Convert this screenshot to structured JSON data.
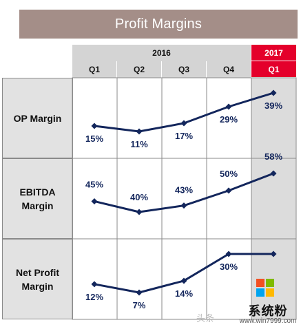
{
  "chart_data": {
    "type": "line",
    "title": "Profit Margins",
    "year_labels": [
      "2016",
      "2017"
    ],
    "categories": [
      "Q1",
      "Q2",
      "Q3",
      "Q4",
      "Q1"
    ],
    "series": [
      {
        "name": "OP Margin",
        "values": [
          15,
          11,
          17,
          29,
          39
        ],
        "labels": [
          "15%",
          "11%",
          "17%",
          "29%",
          "39%"
        ]
      },
      {
        "name": "EBITDA\nMargin",
        "values": [
          45,
          40,
          43,
          50,
          58
        ],
        "labels": [
          "45%",
          "40%",
          "43%",
          "50%",
          "58%"
        ]
      },
      {
        "name": "Net Profit\nMargin",
        "values": [
          12,
          7,
          14,
          30,
          30
        ],
        "labels": [
          "12%",
          "7%",
          "14%",
          "30%",
          ""
        ]
      }
    ],
    "highlight_color": "#e4002b",
    "line_color": "#13265c"
  },
  "watermark": {
    "brand": "系统粉",
    "url": "www.win7999.com",
    "left_mark": "头条"
  }
}
